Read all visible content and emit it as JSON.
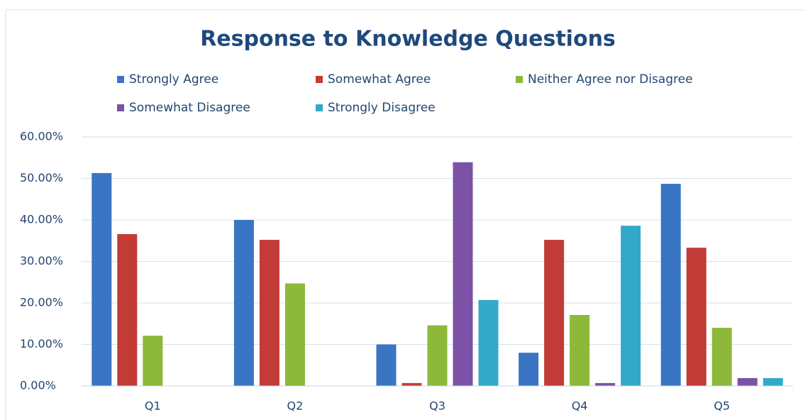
{
  "chart_data": {
    "type": "bar",
    "title": "Response to Knowledge Questions",
    "categories": [
      "Q1",
      "Q2",
      "Q3",
      "Q4",
      "Q5"
    ],
    "series": [
      {
        "name": "Strongly Agree",
        "color": "#3a75c4",
        "values": [
          51.3,
          40.0,
          10.0,
          8.0,
          48.7
        ]
      },
      {
        "name": "Somewhat Agree",
        "color": "#c23b36",
        "values": [
          36.6,
          35.2,
          0.7,
          35.2,
          33.3
        ]
      },
      {
        "name": "Neither Agree nor Disagree",
        "color": "#8db83a",
        "values": [
          12.1,
          24.7,
          14.6,
          17.1,
          14.0
        ]
      },
      {
        "name": "Somewhat Disagree",
        "color": "#7b52a6",
        "values": [
          0,
          0,
          53.9,
          0.7,
          1.9
        ]
      },
      {
        "name": "Strongly Disagree",
        "color": "#33a9c9",
        "values": [
          0,
          0,
          20.7,
          38.6,
          1.9
        ]
      }
    ],
    "ylim": [
      0,
      60
    ],
    "yticks": [
      {
        "value": 0,
        "label": "0.00%"
      },
      {
        "value": 10,
        "label": "10.00%"
      },
      {
        "value": 20,
        "label": "20.00%"
      },
      {
        "value": 30,
        "label": "30.00%"
      },
      {
        "value": 40,
        "label": "40.00%"
      },
      {
        "value": 50,
        "label": "50.00%"
      },
      {
        "value": 60,
        "label": "60.00%"
      }
    ],
    "grid": true
  }
}
